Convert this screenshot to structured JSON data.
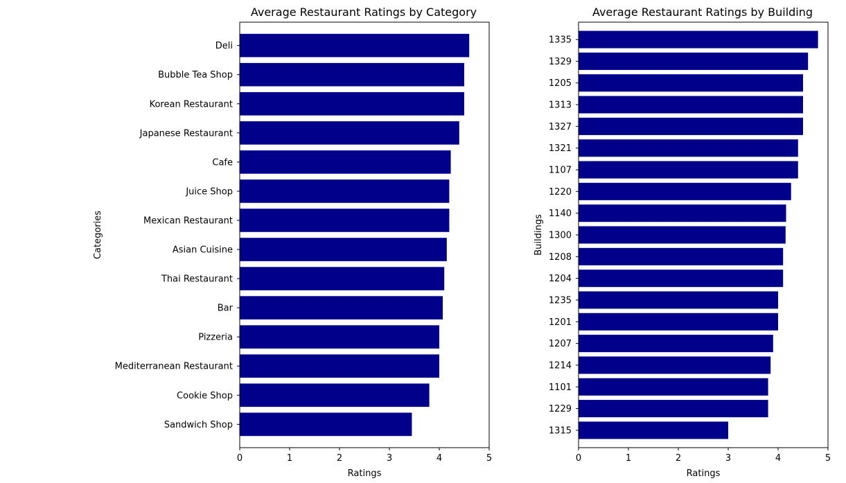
{
  "bar_color": "#00008b",
  "chart_data": [
    {
      "type": "bar",
      "orientation": "horizontal",
      "title": "Average Restaurant Ratings by Category",
      "xlabel": "Ratings",
      "ylabel": "Categories",
      "xlim": [
        0,
        5
      ],
      "xticks": [
        "0",
        "1",
        "2",
        "3",
        "4",
        "5"
      ],
      "grid": false,
      "categories": [
        "Deli",
        "Bubble Tea Shop",
        "Korean Restaurant",
        "Japanese Restaurant",
        "Cafe",
        "Juice Shop",
        "Mexican Restaurant",
        "Asian Cuisine ",
        "Thai Restaurant",
        "Bar",
        "Pizzeria",
        "Mediterranean Restaurant",
        "Cookie Shop",
        "Sandwich Shop"
      ],
      "values": [
        4.6,
        4.5,
        4.5,
        4.4,
        4.23,
        4.2,
        4.2,
        4.15,
        4.1,
        4.07,
        4.0,
        4.0,
        3.8,
        3.45
      ]
    },
    {
      "type": "bar",
      "orientation": "horizontal",
      "title": "Average Restaurant Ratings by Building",
      "xlabel": "Ratings",
      "ylabel": "Buildings",
      "xlim": [
        0,
        5
      ],
      "xticks": [
        "0",
        "1",
        "2",
        "3",
        "4",
        "5"
      ],
      "grid": false,
      "categories": [
        "1335",
        "1329",
        "1205",
        "1313",
        "1327",
        "1321",
        "1107",
        "1220",
        "1140",
        "1300",
        "1208",
        "1204",
        "1235",
        "1201",
        "1207",
        "1214",
        "1101",
        "1229",
        "1315"
      ],
      "values": [
        4.8,
        4.6,
        4.5,
        4.5,
        4.5,
        4.4,
        4.4,
        4.26,
        4.16,
        4.15,
        4.1,
        4.1,
        4.0,
        4.0,
        3.9,
        3.85,
        3.8,
        3.8,
        3.0
      ]
    }
  ]
}
